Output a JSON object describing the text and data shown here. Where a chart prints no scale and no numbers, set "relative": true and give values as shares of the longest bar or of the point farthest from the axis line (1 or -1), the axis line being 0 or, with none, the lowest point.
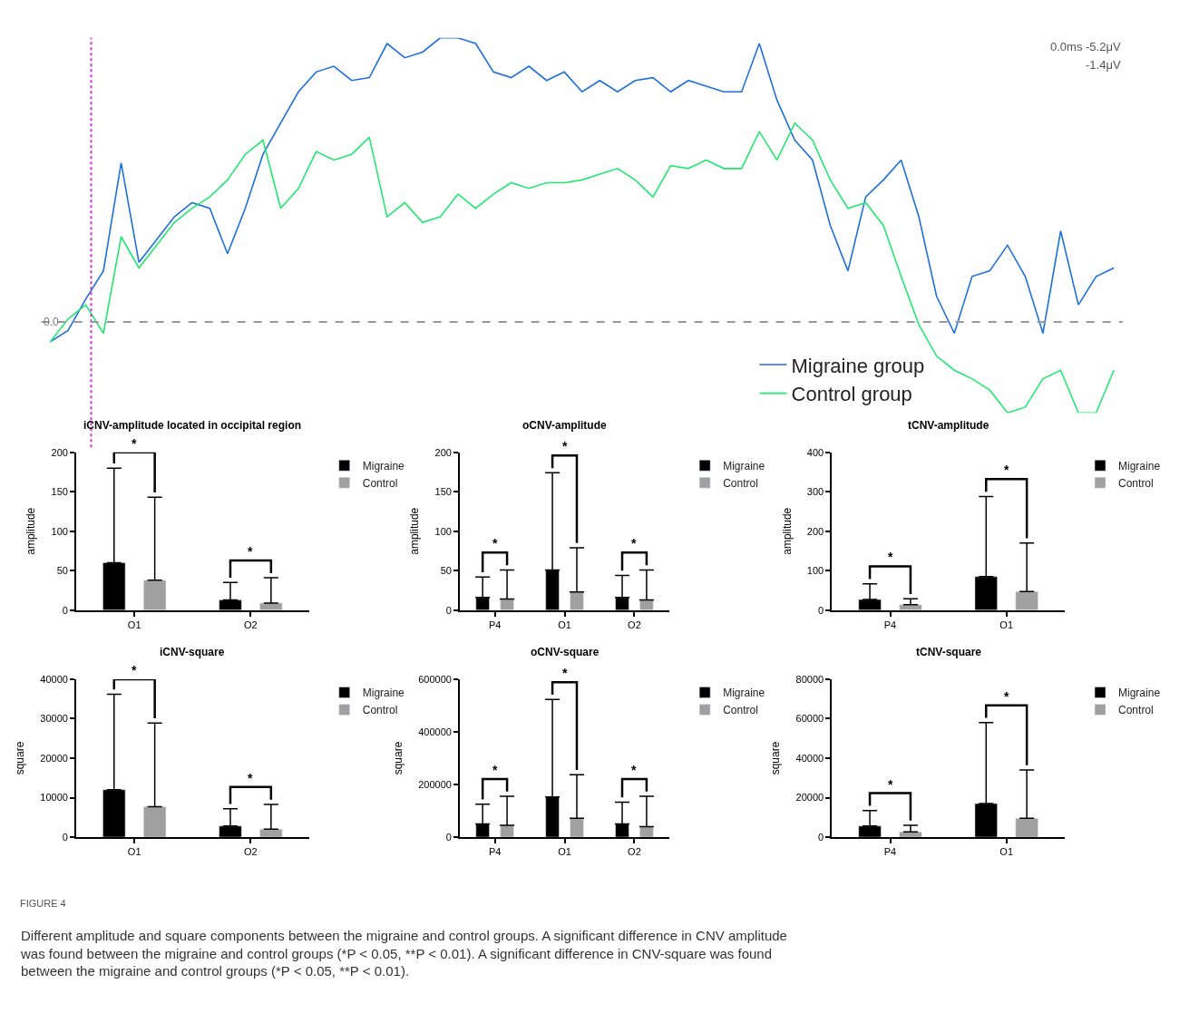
{
  "chart_data": [
    {
      "type": "line",
      "relative": true,
      "categories": [
        null,
        null,
        null,
        null,
        null,
        null,
        null,
        null,
        null,
        null,
        null,
        null,
        null,
        null,
        null,
        null,
        null,
        null,
        null,
        null,
        null,
        null,
        null,
        null,
        null,
        null,
        null,
        null,
        null,
        null,
        null,
        null,
        null,
        null,
        null,
        null,
        null,
        null,
        null,
        null,
        null,
        null,
        null,
        null,
        null,
        null,
        null,
        null,
        null,
        null,
        null,
        null,
        null,
        null,
        null,
        null,
        null,
        null,
        null,
        null,
        null
      ],
      "series": [
        {
          "name": "Migraine group",
          "color": "#1e6fe0",
          "values": [
            -0.07,
            -0.03,
            0.08,
            0.18,
            0.56,
            0.21,
            0.29,
            0.37,
            0.42,
            0.4,
            0.24,
            0.4,
            0.59,
            0.7,
            0.81,
            0.88,
            0.9,
            0.85,
            0.86,
            0.98,
            0.93,
            0.95,
            1,
            1,
            0.98,
            0.88,
            0.86,
            0.9,
            0.85,
            0.88,
            0.81,
            0.85,
            0.81,
            0.85,
            0.86,
            0.81,
            0.85,
            0.83,
            0.81,
            0.81,
            0.98,
            0.78,
            0.64,
            0.57,
            0.34,
            0.18,
            0.44,
            0.5,
            0.57,
            0.37,
            0.09,
            -0.04,
            0.16,
            0.18,
            0.27,
            0.16,
            -0.04,
            0.32,
            0.06,
            0.16,
            0.19
          ]
        },
        {
          "name": "Control group",
          "color": "#22e870",
          "values": [
            -0.07,
            0.01,
            0.06,
            -0.04,
            0.3,
            0.19,
            0.27,
            0.35,
            0.4,
            0.44,
            0.5,
            0.59,
            0.64,
            0.4,
            0.47,
            0.6,
            0.57,
            0.59,
            0.65,
            0.37,
            0.42,
            0.35,
            0.37,
            0.45,
            0.4,
            0.45,
            0.49,
            0.47,
            0.49,
            0.49,
            0.5,
            0.52,
            0.54,
            0.5,
            0.44,
            0.55,
            0.54,
            0.57,
            0.54,
            0.54,
            0.67,
            0.57,
            0.7,
            0.64,
            0.5,
            0.4,
            0.42,
            0.34,
            0.16,
            -0.01,
            -0.12,
            -0.17,
            -0.2,
            -0.24,
            -0.32,
            -0.3,
            -0.2,
            -0.17,
            -0.32,
            -0.32,
            -0.17
          ]
        }
      ],
      "ref_lines": [
        {
          "axis": "y",
          "value": 0,
          "color": "#999999",
          "line_style": "dashed"
        }
      ],
      "annotations": [
        "0.0ms -5.2μV",
        "-1.4μV",
        {
          "text": "0.0",
          "y": 0
        }
      ],
      "legend": "bottom right"
    },
    {
      "type": "bar",
      "title": "iCNV-amplitude located in occipital region",
      "ylabel": "amplitude",
      "categories": [
        "O1",
        "O2"
      ],
      "series": [
        {
          "name": "Migraine",
          "color": "#000000",
          "values": [
            60,
            13
          ],
          "errors": [
            [
              60,
              180
            ],
            [
              13,
              35
            ]
          ]
        },
        {
          "name": "Control",
          "color": "#a0a0a0",
          "values": [
            38,
            9
          ],
          "errors": [
            [
              38,
              143
            ],
            [
              9,
              41
            ]
          ]
        }
      ],
      "ylim": [
        0,
        200
      ],
      "yticks": [
        0,
        50,
        100,
        150,
        200
      ],
      "legend": "top right",
      "annotations": [
        "*",
        "*"
      ]
    },
    {
      "type": "bar",
      "title": "oCNV-amplitude",
      "ylabel": "amplitude",
      "categories": [
        "P4",
        "O1",
        "O2"
      ],
      "series": [
        {
          "name": "Migraine",
          "color": "#000000",
          "values": [
            16,
            51,
            16
          ],
          "errors": [
            [
              16,
              42
            ],
            [
              51,
              174
            ],
            [
              16,
              44
            ]
          ]
        },
        {
          "name": "Control",
          "color": "#a0a0a0",
          "values": [
            14,
            23,
            13
          ],
          "errors": [
            [
              14,
              51
            ],
            [
              23,
              79
            ],
            [
              13,
              51
            ]
          ]
        }
      ],
      "ylim": [
        0,
        200
      ],
      "yticks": [
        0,
        50,
        100,
        150,
        200
      ],
      "legend": "top right",
      "annotations": [
        "*",
        "*",
        "*"
      ]
    },
    {
      "type": "bar",
      "title": "tCNV-amplitude",
      "ylabel": "amplitude",
      "categories": [
        "P4",
        "O1"
      ],
      "series": [
        {
          "name": "Migraine",
          "color": "#000000",
          "values": [
            27,
            85
          ],
          "errors": [
            [
              27,
              67
            ],
            [
              85,
              288
            ]
          ]
        },
        {
          "name": "Control",
          "color": "#a0a0a0",
          "values": [
            14,
            47
          ],
          "errors": [
            [
              14,
              29
            ],
            [
              47,
              170
            ]
          ]
        }
      ],
      "ylim": [
        0,
        400
      ],
      "yticks": [
        0,
        100,
        200,
        300,
        400
      ],
      "legend": "top right",
      "annotations": [
        "*",
        "*"
      ]
    },
    {
      "type": "bar",
      "title": "iCNV-square",
      "ylabel": "square",
      "categories": [
        "O1",
        "O2"
      ],
      "series": [
        {
          "name": "Migraine",
          "color": "#000000",
          "values": [
            12000,
            2800
          ],
          "errors": [
            [
              12000,
              36200
            ],
            [
              2800,
              7200
            ]
          ]
        },
        {
          "name": "Control",
          "color": "#a0a0a0",
          "values": [
            7700,
            2000
          ],
          "errors": [
            [
              7700,
              28900
            ],
            [
              2000,
              8300
            ]
          ]
        }
      ],
      "ylim": [
        0,
        40000
      ],
      "yticks": [
        0,
        10000,
        20000,
        30000,
        40000
      ],
      "legend": "top right",
      "annotations": [
        "*",
        "*"
      ]
    },
    {
      "type": "bar",
      "title": "oCNV-square",
      "ylabel": "square",
      "categories": [
        "P4",
        "O1",
        "O2"
      ],
      "series": [
        {
          "name": "Migraine",
          "color": "#000000",
          "values": [
            50000,
            153000,
            50000
          ],
          "errors": [
            [
              50000,
              125000
            ],
            [
              153000,
              523000
            ],
            [
              50000,
              133000
            ]
          ]
        },
        {
          "name": "Control",
          "color": "#a0a0a0",
          "values": [
            45000,
            72000,
            40000
          ],
          "errors": [
            [
              45000,
              155000
            ],
            [
              72000,
              237000
            ],
            [
              40000,
              155000
            ]
          ]
        }
      ],
      "ylim": [
        0,
        600000
      ],
      "yticks": [
        0,
        200000,
        400000,
        600000
      ],
      "legend": "top right",
      "annotations": [
        "*",
        "*",
        "*"
      ]
    },
    {
      "type": "bar",
      "title": "tCNV-square",
      "ylabel": "square",
      "categories": [
        "P4",
        "O1"
      ],
      "series": [
        {
          "name": "Migraine",
          "color": "#000000",
          "values": [
            5600,
            17000
          ],
          "errors": [
            [
              5600,
              13500
            ],
            [
              17000,
              58000
            ]
          ]
        },
        {
          "name": "Control",
          "color": "#a0a0a0",
          "values": [
            2700,
            9500
          ],
          "errors": [
            [
              2700,
              6000
            ],
            [
              9500,
              34000
            ]
          ]
        }
      ],
      "ylim": [
        0,
        80000
      ],
      "yticks": [
        0,
        20000,
        40000,
        60000,
        80000
      ],
      "legend": "top right",
      "annotations": [
        "*",
        "*",
        "FIGURE 4",
        "Different amplitude and square components between the migraine and control groups. A significant difference in CNV amplitude was found between the migraine and control groups (*P < 0.05, **P < 0.01). A significant difference in CNV-square was found between the migraine and control groups (*P < 0.05, **P < 0.01)."
      ]
    }
  ]
}
